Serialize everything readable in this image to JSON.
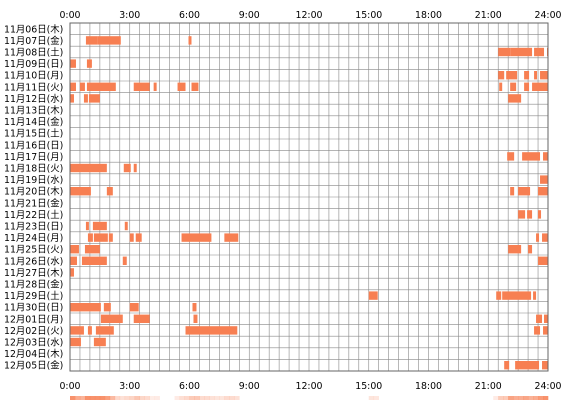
{
  "chart_data": {
    "type": "heatmap",
    "title": "",
    "x_ticks": [
      "0:00",
      "3:00",
      "6:00",
      "9:00",
      "12:00",
      "15:00",
      "18:00",
      "21:00",
      "24:00"
    ],
    "x_range_hours": [
      0,
      24
    ],
    "grid": true,
    "colors": {
      "activity": "#f77f52",
      "grid": "#888888",
      "border": "#666666",
      "summary_light": "#ffe3d8"
    },
    "rows": [
      {
        "label": "11月06日(木)",
        "intervals": []
      },
      {
        "label": "11月07日(金)",
        "intervals": [
          [
            0.8,
            1.4
          ],
          [
            1.4,
            2.55
          ],
          [
            5.95,
            6.1
          ]
        ]
      },
      {
        "label": "11月08日(土)",
        "intervals": [
          [
            21.5,
            22.1
          ],
          [
            22.1,
            23.2
          ],
          [
            23.3,
            23.8
          ],
          [
            23.95,
            24.0
          ]
        ]
      },
      {
        "label": "11月09日(日)",
        "intervals": [
          [
            0.0,
            0.3
          ],
          [
            0.85,
            1.1
          ]
        ]
      },
      {
        "label": "11月10日(月)",
        "intervals": [
          [
            21.5,
            21.8
          ],
          [
            21.9,
            22.45
          ],
          [
            22.8,
            23.05
          ],
          [
            23.3,
            23.45
          ],
          [
            23.6,
            24.0
          ]
        ]
      },
      {
        "label": "11月11日(火)",
        "intervals": [
          [
            0.0,
            0.3
          ],
          [
            0.5,
            0.75
          ],
          [
            0.85,
            2.3
          ],
          [
            3.2,
            4.0
          ],
          [
            4.2,
            4.35
          ],
          [
            5.4,
            5.8
          ],
          [
            6.1,
            6.45
          ],
          [
            21.55,
            21.7
          ],
          [
            22.1,
            22.4
          ],
          [
            22.8,
            23.05
          ],
          [
            23.2,
            24.0
          ]
        ]
      },
      {
        "label": "11月12日(水)",
        "intervals": [
          [
            0.0,
            0.2
          ],
          [
            0.7,
            0.9
          ],
          [
            0.95,
            1.5
          ],
          [
            22.0,
            22.65
          ]
        ]
      },
      {
        "label": "11月13日(木)",
        "intervals": []
      },
      {
        "label": "11月14日(金)",
        "intervals": []
      },
      {
        "label": "11月15日(土)",
        "intervals": []
      },
      {
        "label": "11月16日(日)",
        "intervals": []
      },
      {
        "label": "11月17日(月)",
        "intervals": [
          [
            21.95,
            22.3
          ],
          [
            22.7,
            23.6
          ],
          [
            23.75,
            24.0
          ]
        ]
      },
      {
        "label": "11月18日(火)",
        "intervals": [
          [
            0.0,
            1.85
          ],
          [
            2.7,
            3.05
          ],
          [
            3.2,
            3.35
          ]
        ]
      },
      {
        "label": "11月19日(水)",
        "intervals": [
          [
            23.6,
            24.0
          ]
        ]
      },
      {
        "label": "11月20日(木)",
        "intervals": [
          [
            0.0,
            1.05
          ],
          [
            1.85,
            2.15
          ],
          [
            22.1,
            22.3
          ],
          [
            22.5,
            23.1
          ],
          [
            23.5,
            24.0
          ]
        ]
      },
      {
        "label": "11月21日(金)",
        "intervals": []
      },
      {
        "label": "11月22日(土)",
        "intervals": [
          [
            22.5,
            22.85
          ],
          [
            22.95,
            23.2
          ],
          [
            23.5,
            23.65
          ]
        ]
      },
      {
        "label": "11月23日(日)",
        "intervals": [
          [
            0.8,
            0.95
          ],
          [
            1.15,
            1.85
          ],
          [
            2.75,
            2.9
          ]
        ]
      },
      {
        "label": "11月24日(月)",
        "intervals": [
          [
            0.9,
            1.15
          ],
          [
            1.2,
            1.9
          ],
          [
            1.95,
            2.15
          ],
          [
            3.0,
            3.2
          ],
          [
            3.3,
            3.6
          ],
          [
            5.6,
            7.1
          ],
          [
            7.75,
            8.45
          ],
          [
            23.4,
            23.55
          ],
          [
            23.7,
            24.0
          ]
        ]
      },
      {
        "label": "11月25日(火)",
        "intervals": [
          [
            0.0,
            0.45
          ],
          [
            0.75,
            1.5
          ],
          [
            22.0,
            22.65
          ],
          [
            23.0,
            23.2
          ]
        ]
      },
      {
        "label": "11月26日(水)",
        "intervals": [
          [
            0.0,
            0.35
          ],
          [
            0.6,
            1.85
          ],
          [
            2.65,
            2.85
          ],
          [
            23.5,
            24.0
          ]
        ]
      },
      {
        "label": "11月27日(木)",
        "intervals": [
          [
            0.0,
            0.2
          ]
        ]
      },
      {
        "label": "11月28日(金)",
        "intervals": []
      },
      {
        "label": "11月29日(土)",
        "intervals": [
          [
            15.0,
            15.45
          ],
          [
            21.4,
            21.65
          ],
          [
            21.7,
            23.15
          ],
          [
            23.25,
            23.4
          ]
        ]
      },
      {
        "label": "11月30日(日)",
        "intervals": [
          [
            0.0,
            1.55
          ],
          [
            1.7,
            2.05
          ],
          [
            3.0,
            3.45
          ],
          [
            6.15,
            6.35
          ]
        ]
      },
      {
        "label": "12月01日(月)",
        "intervals": [
          [
            1.55,
            2.65
          ],
          [
            3.2,
            4.0
          ],
          [
            6.2,
            6.4
          ],
          [
            23.4,
            23.7
          ],
          [
            23.8,
            24.0
          ]
        ]
      },
      {
        "label": "12月02日(火)",
        "intervals": [
          [
            0.0,
            0.7
          ],
          [
            0.9,
            1.1
          ],
          [
            1.3,
            2.2
          ],
          [
            5.8,
            8.4
          ],
          [
            23.3,
            23.6
          ],
          [
            23.75,
            24.0
          ]
        ]
      },
      {
        "label": "12月03日(水)",
        "intervals": [
          [
            0.0,
            0.55
          ],
          [
            1.2,
            1.8
          ]
        ]
      },
      {
        "label": "12月04日(木)",
        "intervals": []
      },
      {
        "label": "12月05日(金)",
        "intervals": [
          [
            21.8,
            22.05
          ],
          [
            22.35,
            23.55
          ],
          [
            23.7,
            24.0
          ]
        ]
      }
    ]
  }
}
